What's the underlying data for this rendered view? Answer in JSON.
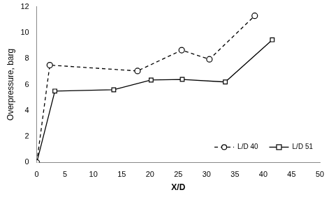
{
  "chart_data": {
    "type": "line",
    "x_label": "X/D",
    "y_label": "Overpressure, barg",
    "xlim": [
      0,
      50
    ],
    "xticks": [
      0,
      5,
      10,
      15,
      20,
      25,
      30,
      35,
      40,
      45,
      50
    ],
    "ylim": [
      0,
      12
    ],
    "yticks": [
      0,
      2,
      4,
      6,
      8,
      10,
      12
    ],
    "grid": false,
    "legend": "lower right",
    "series": [
      {
        "name": "L/D 40",
        "color": "#000000",
        "marker": "circle",
        "line_style": "dashed",
        "x": [
          0,
          2.3,
          17.8,
          25.6,
          30.5,
          38.5
        ],
        "values": [
          0,
          7.5,
          7.05,
          8.65,
          7.95,
          11.3
        ]
      },
      {
        "name": "L/D 51",
        "color": "#000000",
        "marker": "square",
        "line_style": "solid",
        "x": [
          0,
          3.2,
          13.6,
          20.2,
          25.7,
          33.3,
          41.6
        ],
        "values": [
          0,
          5.5,
          5.6,
          6.35,
          6.4,
          6.2,
          9.45
        ]
      }
    ]
  }
}
